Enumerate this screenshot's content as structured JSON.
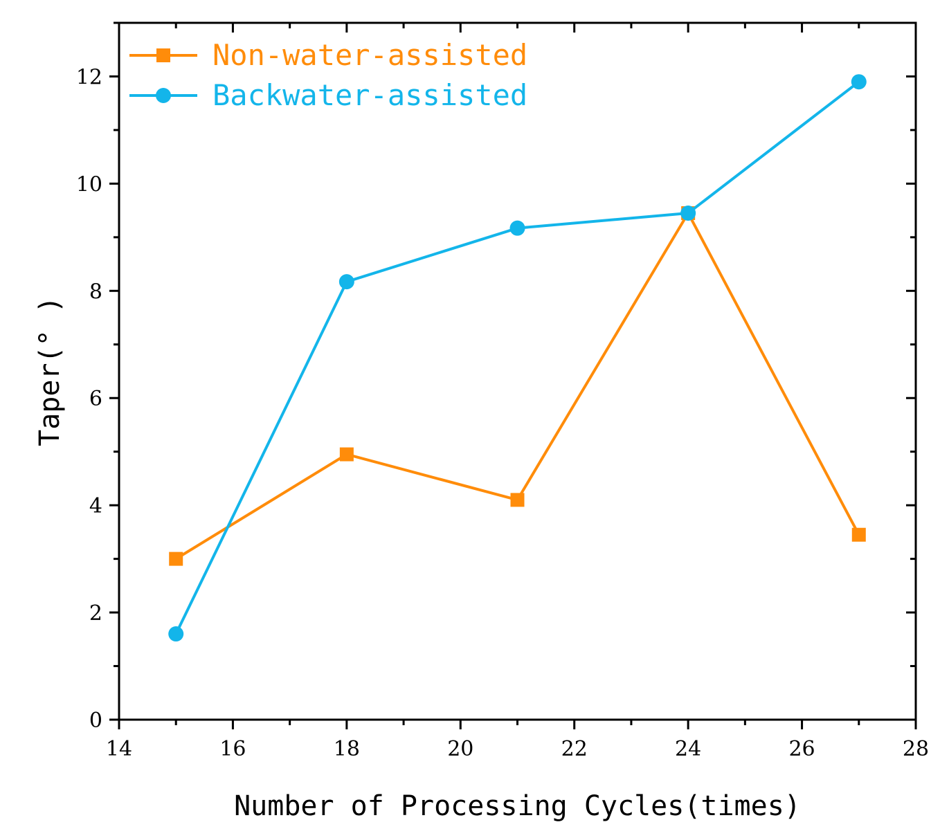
{
  "chart_data": {
    "type": "line",
    "xlabel": "Number of Processing Cycles(times)",
    "ylabel": "Taper(° )",
    "xlim": [
      14,
      28
    ],
    "ylim": [
      0,
      13
    ],
    "xticks": [
      14,
      16,
      18,
      20,
      22,
      24,
      26,
      28
    ],
    "yticks": [
      0,
      2,
      4,
      6,
      8,
      10,
      12
    ],
    "x_minor_step": 1,
    "y_minor_step": 1,
    "grid": false,
    "legend_position": "top-left",
    "x": [
      15,
      18,
      21,
      24,
      27
    ],
    "series": [
      {
        "name": "Non-water-assisted",
        "marker": "square",
        "color": "#FF8C0A",
        "values": [
          3.0,
          4.95,
          4.1,
          9.45,
          3.45
        ]
      },
      {
        "name": "Backwater-assisted",
        "marker": "circle",
        "color": "#13B5EA",
        "values": [
          1.6,
          8.17,
          9.17,
          9.45,
          11.9
        ]
      }
    ]
  }
}
